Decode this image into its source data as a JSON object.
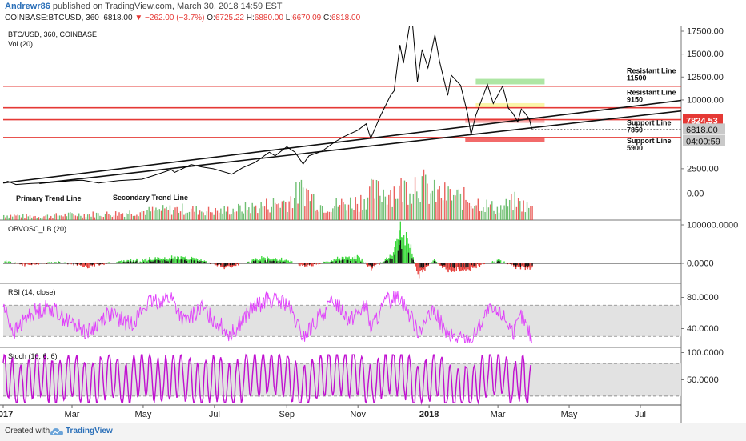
{
  "header": {
    "author": "Andrewr86",
    "published": "published on TradingView.com, March 30, 2018 14:59 EST",
    "symbol": "COINBASE:BTCUSD, 360",
    "price": "6818.00",
    "change": "−262.00 (−3.7%)",
    "o_label": "O:",
    "o_value": "6725.22",
    "h_label": "H:",
    "h_value": "6880.00",
    "l_label": "L:",
    "l_value": "6670.09",
    "c_label": "C:",
    "c_value": "6818.00"
  },
  "footer": {
    "created": "Created with",
    "brand": "TradingView"
  },
  "colors": {
    "resistance": "#e53935",
    "trend": "#111111",
    "price": "#000000",
    "vol_up": "#4caf50",
    "vol_down": "#e53935",
    "rsi": "#e040fb",
    "stoch": "#c010d0",
    "band": "#e2e2e2",
    "green_zone": "#a5e39a",
    "yellow_zone": "#fbf5a0",
    "pink_zone": "#f7a8a8",
    "red_zone": "#f05050"
  },
  "chart_data": [
    {
      "type": "line",
      "pane": "price",
      "title": "BTC/USD, 360, COINBASE",
      "subtitle": "Vol (20)",
      "x_range": [
        "2017-01-01",
        "2018-08-05"
      ],
      "x_ticks": [
        {
          "date": "2017-01-01",
          "label": "2017",
          "bold": true
        },
        {
          "date": "2017-03-01",
          "label": "Mar"
        },
        {
          "date": "2017-05-01",
          "label": "May"
        },
        {
          "date": "2017-07-01",
          "label": "Jul"
        },
        {
          "date": "2017-09-01",
          "label": "Sep"
        },
        {
          "date": "2017-11-01",
          "label": "Nov"
        },
        {
          "date": "2018-01-01",
          "label": "2018",
          "bold": true
        },
        {
          "date": "2018-03-01",
          "label": "Mar"
        },
        {
          "date": "2018-05-01",
          "label": "May"
        },
        {
          "date": "2018-07-01",
          "label": "Jul"
        }
      ],
      "y_ticks": [
        "17500.00",
        "15000.00",
        "12500.00",
        "10000.00",
        "2500.00",
        "0.00"
      ],
      "series": [
        {
          "points": [
            [
              "2017-01-01",
              970
            ],
            [
              "2017-01-05",
              1130
            ],
            [
              "2017-01-12",
              780
            ],
            [
              "2017-01-25",
              900
            ],
            [
              "2017-02-10",
              990
            ],
            [
              "2017-02-28",
              1190
            ],
            [
              "2017-03-10",
              1250
            ],
            [
              "2017-03-24",
              940
            ],
            [
              "2017-04-10",
              1200
            ],
            [
              "2017-04-30",
              1350
            ],
            [
              "2017-05-10",
              1750
            ],
            [
              "2017-05-25",
              2400
            ],
            [
              "2017-05-28",
              2100
            ],
            [
              "2017-06-11",
              2950
            ],
            [
              "2017-06-20",
              2700
            ],
            [
              "2017-06-30",
              2500
            ],
            [
              "2017-07-16",
              1900
            ],
            [
              "2017-07-25",
              2600
            ],
            [
              "2017-08-05",
              3200
            ],
            [
              "2017-08-17",
              4300
            ],
            [
              "2017-08-22",
              3900
            ],
            [
              "2017-09-01",
              4900
            ],
            [
              "2017-09-08",
              4300
            ],
            [
              "2017-09-15",
              3000
            ],
            [
              "2017-09-20",
              3900
            ],
            [
              "2017-10-01",
              4400
            ],
            [
              "2017-10-12",
              5400
            ],
            [
              "2017-10-20",
              6000
            ],
            [
              "2017-11-01",
              6700
            ],
            [
              "2017-11-08",
              7400
            ],
            [
              "2017-11-12",
              5800
            ],
            [
              "2017-11-20",
              8200
            ],
            [
              "2017-11-29",
              10500
            ],
            [
              "2017-12-02",
              11000
            ],
            [
              "2017-12-07",
              16000
            ],
            [
              "2017-12-10",
              14000
            ],
            [
              "2017-12-17",
              19500
            ],
            [
              "2017-12-22",
              12000
            ],
            [
              "2017-12-26",
              15500
            ],
            [
              "2017-12-31",
              13500
            ],
            [
              "2018-01-06",
              17100
            ],
            [
              "2018-01-10",
              14200
            ],
            [
              "2018-01-17",
              10500
            ],
            [
              "2018-01-20",
              12700
            ],
            [
              "2018-01-28",
              11600
            ],
            [
              "2018-02-03",
              8500
            ],
            [
              "2018-02-06",
              6200
            ],
            [
              "2018-02-10",
              8300
            ],
            [
              "2018-02-20",
              11700
            ],
            [
              "2018-02-25",
              9600
            ],
            [
              "2018-03-05",
              11500
            ],
            [
              "2018-03-10",
              9100
            ],
            [
              "2018-03-14",
              8500
            ],
            [
              "2018-03-18",
              7600
            ],
            [
              "2018-03-21",
              9000
            ],
            [
              "2018-03-24",
              8600
            ],
            [
              "2018-03-28",
              7900
            ],
            [
              "2018-03-30",
              6818
            ]
          ]
        }
      ],
      "lines": [
        {
          "label": "Resistant Line",
          "value": "11500",
          "y": 11500
        },
        {
          "label": "Resistant Line",
          "value": "9150",
          "y": 9150
        },
        {
          "label": "Support Line",
          "value": "7850",
          "y": 7850
        },
        {
          "label": "Support Line",
          "value": "5900",
          "y": 5900
        }
      ],
      "trend_lines": [
        {
          "label": "Primary Trend Line",
          "from": [
            "2017-01-01",
            950
          ],
          "to": [
            "2018-08-05",
            9950
          ]
        },
        {
          "label": "Secondary Trend Line",
          "from": [
            "2017-02-01",
            900
          ],
          "to": [
            "2018-08-05",
            8800
          ]
        }
      ],
      "zones": [
        {
          "name": "green",
          "x": [
            "2018-02-10",
            "2018-04-10"
          ],
          "y": [
            11700,
            12300
          ]
        },
        {
          "name": "yellow",
          "x": [
            "2018-02-10",
            "2018-04-10"
          ],
          "y": [
            9100,
            9650
          ]
        },
        {
          "name": "pink",
          "x": [
            "2018-02-01",
            "2018-04-10"
          ],
          "y": [
            7500,
            8050
          ]
        },
        {
          "name": "red",
          "x": [
            "2018-02-01",
            "2018-04-10"
          ],
          "y": [
            5400,
            5950
          ]
        }
      ],
      "price_badges": [
        {
          "value": "7824.53",
          "y": 7824.53,
          "style": "red"
        },
        {
          "value": "6818.00",
          "y": 6818,
          "style": "grey"
        },
        {
          "value": "04:00:59",
          "y": 5550,
          "style": "grey"
        }
      ],
      "volume": {
        "points": [
          [
            "2017-01-01",
            400
          ],
          [
            "2017-02-01",
            300
          ],
          [
            "2017-03-01",
            450
          ],
          [
            "2017-04-01",
            500
          ],
          [
            "2017-05-01",
            700
          ],
          [
            "2017-06-01",
            900
          ],
          [
            "2017-07-01",
            700
          ],
          [
            "2017-08-01",
            1000
          ],
          [
            "2017-09-01",
            1500
          ],
          [
            "2017-09-15",
            2500
          ],
          [
            "2017-10-01",
            1100
          ],
          [
            "2017-11-01",
            1500
          ],
          [
            "2017-11-12",
            2200
          ],
          [
            "2017-12-01",
            2400
          ],
          [
            "2017-12-10",
            2500
          ],
          [
            "2017-12-22",
            3300
          ],
          [
            "2018-01-01",
            2200
          ],
          [
            "2018-01-17",
            2000
          ],
          [
            "2018-02-06",
            1600
          ],
          [
            "2018-03-01",
            900
          ],
          [
            "2018-03-15",
            1500
          ],
          [
            "2018-03-30",
            900
          ]
        ]
      }
    },
    {
      "type": "area",
      "pane": "obv",
      "title": "OBVOSC_LB (20)",
      "y_ticks": [
        "100000.0000",
        "0.0000"
      ],
      "series": [
        {
          "points": [
            [
              "2017-01-01",
              6000
            ],
            [
              "2017-01-20",
              -5000
            ],
            [
              "2017-02-15",
              4000
            ],
            [
              "2017-03-15",
              -8000
            ],
            [
              "2017-04-10",
              5000
            ],
            [
              "2017-05-15",
              12000
            ],
            [
              "2017-06-10",
              16000
            ],
            [
              "2017-07-10",
              -12000
            ],
            [
              "2017-08-10",
              14000
            ],
            [
              "2017-09-01",
              9000
            ],
            [
              "2017-09-15",
              -9000
            ],
            [
              "2017-10-15",
              11000
            ],
            [
              "2017-11-01",
              15000
            ],
            [
              "2017-11-12",
              -14000
            ],
            [
              "2017-12-01",
              22000
            ],
            [
              "2017-12-08",
              100000
            ],
            [
              "2017-12-15",
              45000
            ],
            [
              "2017-12-22",
              -28000
            ],
            [
              "2018-01-05",
              8000
            ],
            [
              "2018-01-17",
              -18000
            ],
            [
              "2018-02-06",
              -12000
            ],
            [
              "2018-03-01",
              9000
            ],
            [
              "2018-03-15",
              -9000
            ],
            [
              "2018-03-30",
              -17000
            ]
          ]
        }
      ]
    },
    {
      "type": "line",
      "pane": "rsi",
      "title": "RSI (14, close)",
      "y_ticks": [
        "80.0000",
        "40.0000"
      ],
      "band": [
        30,
        70
      ],
      "series": [
        {
          "points": [
            [
              "2017-01-01",
              70
            ],
            [
              "2017-01-10",
              35
            ],
            [
              "2017-01-25",
              60
            ],
            [
              "2017-02-10",
              68
            ],
            [
              "2017-02-25",
              50
            ],
            [
              "2017-03-15",
              35
            ],
            [
              "2017-04-01",
              60
            ],
            [
              "2017-04-20",
              45
            ],
            [
              "2017-05-05",
              72
            ],
            [
              "2017-05-25",
              80
            ],
            [
              "2017-06-05",
              48
            ],
            [
              "2017-06-20",
              66
            ],
            [
              "2017-07-15",
              32
            ],
            [
              "2017-08-01",
              64
            ],
            [
              "2017-08-15",
              77
            ],
            [
              "2017-09-01",
              72
            ],
            [
              "2017-09-15",
              28
            ],
            [
              "2017-10-01",
              58
            ],
            [
              "2017-10-12",
              76
            ],
            [
              "2017-10-25",
              52
            ],
            [
              "2017-11-08",
              70
            ],
            [
              "2017-11-12",
              40
            ],
            [
              "2017-11-25",
              74
            ],
            [
              "2017-12-07",
              82
            ],
            [
              "2017-12-22",
              38
            ],
            [
              "2018-01-06",
              62
            ],
            [
              "2018-01-17",
              30
            ],
            [
              "2018-02-06",
              25
            ],
            [
              "2018-02-20",
              62
            ],
            [
              "2018-03-05",
              58
            ],
            [
              "2018-03-15",
              35
            ],
            [
              "2018-03-21",
              57
            ],
            [
              "2018-03-30",
              28
            ]
          ]
        }
      ]
    },
    {
      "type": "line",
      "pane": "stoch",
      "title": "Stoch (10, 6, 6)",
      "y_ticks": [
        "100.0000",
        "50.0000"
      ],
      "band": [
        20,
        80
      ],
      "series": [
        {
          "points": [
            [
              "2017-01-01",
              80
            ],
            [
              "2017-01-15",
              12
            ],
            [
              "2017-02-01",
              85
            ],
            [
              "2017-02-15",
              25
            ],
            [
              "2017-03-01",
              88
            ],
            [
              "2017-03-15",
              8
            ],
            [
              "2017-04-01",
              82
            ],
            [
              "2017-04-15",
              20
            ],
            [
              "2017-05-01",
              90
            ],
            [
              "2017-05-15",
              40
            ],
            [
              "2017-06-01",
              88
            ],
            [
              "2017-06-15",
              15
            ],
            [
              "2017-07-01",
              60
            ],
            [
              "2017-07-15",
              10
            ],
            [
              "2017-08-01",
              86
            ],
            [
              "2017-08-15",
              92
            ],
            [
              "2017-09-01",
              70
            ],
            [
              "2017-09-15",
              5
            ],
            [
              "2017-10-01",
              82
            ],
            [
              "2017-10-15",
              90
            ],
            [
              "2017-11-01",
              88
            ],
            [
              "2017-11-12",
              15
            ],
            [
              "2017-11-25",
              90
            ],
            [
              "2017-12-07",
              92
            ],
            [
              "2017-12-22",
              10
            ],
            [
              "2018-01-06",
              85
            ],
            [
              "2018-01-17",
              8
            ],
            [
              "2018-02-06",
              5
            ],
            [
              "2018-02-20",
              88
            ],
            [
              "2018-03-05",
              85
            ],
            [
              "2018-03-15",
              12
            ],
            [
              "2018-03-21",
              75
            ],
            [
              "2018-03-30",
              12
            ]
          ]
        }
      ]
    }
  ]
}
